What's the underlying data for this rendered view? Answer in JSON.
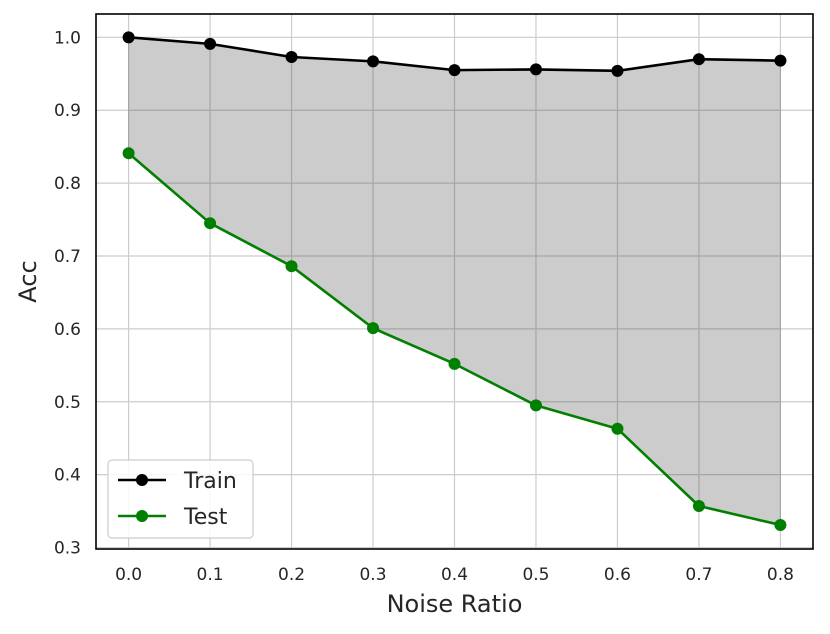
{
  "chart_data": {
    "type": "line",
    "title": "",
    "xlabel": "Noise Ratio",
    "ylabel": "Acc",
    "x": [
      0.0,
      0.1,
      0.2,
      0.3,
      0.4,
      0.5,
      0.6,
      0.7,
      0.8
    ],
    "x_tick_labels": [
      "0.0",
      "0.1",
      "0.2",
      "0.3",
      "0.4",
      "0.5",
      "0.6",
      "0.7",
      "0.8"
    ],
    "y_ticks": [
      0.3,
      0.4,
      0.5,
      0.6,
      0.7,
      0.8,
      0.9,
      1.0
    ],
    "y_tick_labels": [
      "0.3",
      "0.4",
      "0.5",
      "0.6",
      "0.7",
      "0.8",
      "0.9",
      "1.0"
    ],
    "xlim": [
      -0.04,
      0.84
    ],
    "ylim": [
      0.298,
      1.032
    ],
    "grid": true,
    "legend_position": "lower-left",
    "fill_between": {
      "series": [
        "Train",
        "Test"
      ],
      "color": "#cccccc"
    },
    "series": [
      {
        "name": "Train",
        "color": "#000000",
        "marker": "circle",
        "values": [
          1.0,
          0.991,
          0.973,
          0.967,
          0.955,
          0.956,
          0.954,
          0.97,
          0.968
        ]
      },
      {
        "name": "Test",
        "color": "#007f00",
        "marker": "circle",
        "values": [
          0.841,
          0.745,
          0.686,
          0.601,
          0.552,
          0.495,
          0.463,
          0.357,
          0.331
        ]
      }
    ]
  }
}
